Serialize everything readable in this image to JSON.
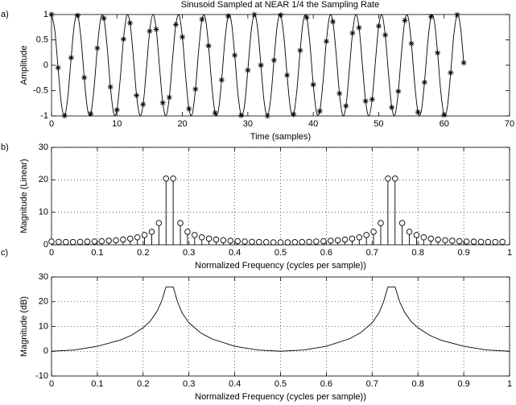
{
  "chart_data": [
    {
      "type": "line",
      "label": "a)",
      "title": "Sinusoid Sampled at NEAR 1/4 the Sampling Rate",
      "xlabel": "Time (samples)",
      "ylabel": "Amplitude",
      "xlim": [
        0,
        70
      ],
      "xticks": [
        0,
        10,
        20,
        30,
        40,
        50,
        60,
        70
      ],
      "ylim": [
        -1,
        1
      ],
      "yticks": [
        -1,
        -0.5,
        0,
        0.5,
        1
      ],
      "grid": false,
      "series": [
        {
          "color": "#000000",
          "linestyle": "solid",
          "interpolation": "smooth",
          "marker": "none",
          "x": [
            0,
            0.5,
            1,
            1.5,
            2,
            2.5,
            3,
            3.5,
            4,
            4.5,
            5,
            5.5,
            6,
            6.5,
            7,
            7.5,
            8,
            8.5,
            9,
            9.5,
            10,
            10.5,
            11,
            11.5,
            12,
            12.5,
            13,
            13.5,
            14,
            14.5,
            15,
            15.5,
            16,
            16.5,
            17,
            17.5,
            18,
            18.5,
            19,
            19.5,
            20,
            20.5,
            21,
            21.5,
            22,
            22.5,
            23,
            23.5,
            24,
            24.5,
            25,
            25.5,
            26,
            26.5,
            27,
            27.5,
            28,
            28.5,
            29,
            29.5,
            30,
            30.5,
            31,
            31.5,
            32,
            32.5,
            33,
            33.5,
            34,
            34.5,
            35,
            35.5,
            36,
            36.5,
            37,
            37.5,
            38,
            38.5,
            39,
            39.5,
            40,
            40.5,
            41,
            41.5,
            42,
            42.5,
            43,
            43.5,
            44,
            44.5,
            45,
            45.5,
            46,
            46.5,
            47,
            47.5,
            48,
            48.5,
            49,
            49.5,
            50,
            50.5,
            51,
            51.5,
            52,
            52.5,
            53,
            53.5,
            54,
            54.5,
            55,
            55.5,
            56,
            56.5,
            57,
            57.5,
            58,
            58.5,
            59,
            59.5,
            60,
            60.5,
            61,
            61.5,
            62,
            62.5,
            63
          ],
          "values": [
            1,
            0.689,
            -0.049,
            -0.757,
            -0.995,
            -0.615,
            0.147,
            0.817,
            0.981,
            0.535,
            -0.243,
            -0.87,
            -0.957,
            -0.45,
            0.337,
            0.914,
            0.924,
            0.36,
            -0.428,
            -0.95,
            -0.882,
            -0.267,
            0.514,
            0.976,
            0.831,
            0.171,
            -0.596,
            -0.992,
            -0.773,
            -0.074,
            0.672,
            1,
            0.707,
            -0.025,
            -0.741,
            -0.997,
            -0.634,
            0.122,
            0.803,
            0.985,
            0.556,
            -0.219,
            -0.858,
            -0.964,
            -0.471,
            0.314,
            0.904,
            0.933,
            0.383,
            -0.405,
            -0.941,
            -0.893,
            -0.29,
            0.493,
            0.97,
            0.845,
            0.195,
            -0.576,
            -0.989,
            -0.788,
            -0.098,
            0.653,
            0.999,
            0.724,
            0,
            -0.724,
            -0.999,
            -0.653,
            0.098,
            0.788,
            0.989,
            0.576,
            -0.195,
            -0.845,
            -0.97,
            -0.493,
            0.29,
            0.893,
            0.941,
            0.405,
            -0.383,
            -0.933,
            -0.904,
            -0.314,
            0.471,
            0.964,
            0.858,
            0.219,
            -0.556,
            -0.985,
            -0.803,
            -0.122,
            0.634,
            0.997,
            0.741,
            0.025,
            -0.707,
            -1,
            -0.672,
            0.074,
            0.773,
            0.992,
            0.596,
            -0.171,
            -0.831,
            -0.976,
            -0.514,
            0.267,
            0.882,
            0.95,
            0.428,
            -0.36,
            -0.924,
            -0.914,
            -0.337,
            0.45,
            0.957,
            0.87,
            0.243,
            -0.535,
            -0.981,
            -0.817,
            -0.147,
            0.615,
            0.995,
            0.757,
            0.049
          ]
        },
        {
          "color": "#000000",
          "linestyle": "none",
          "marker": "*",
          "x": [
            0,
            1,
            2,
            3,
            4,
            5,
            6,
            7,
            8,
            9,
            10,
            11,
            12,
            13,
            14,
            15,
            16,
            17,
            18,
            19,
            20,
            21,
            22,
            23,
            24,
            25,
            26,
            27,
            28,
            29,
            30,
            31,
            32,
            33,
            34,
            35,
            36,
            37,
            38,
            39,
            40,
            41,
            42,
            43,
            44,
            45,
            46,
            47,
            48,
            49,
            50,
            51,
            52,
            53,
            54,
            55,
            56,
            57,
            58,
            59,
            60,
            61,
            62,
            63
          ],
          "values": [
            1,
            -0.049,
            -0.995,
            0.147,
            0.981,
            -0.243,
            -0.957,
            0.337,
            0.924,
            -0.428,
            -0.882,
            0.514,
            0.831,
            -0.596,
            -0.773,
            0.672,
            0.707,
            -0.741,
            -0.634,
            0.803,
            0.556,
            -0.858,
            -0.471,
            0.904,
            0.383,
            -0.941,
            -0.29,
            0.97,
            0.195,
            -0.989,
            -0.098,
            0.999,
            0,
            -0.999,
            0.098,
            0.989,
            -0.195,
            -0.97,
            0.29,
            0.941,
            -0.383,
            -0.904,
            0.471,
            0.858,
            -0.556,
            -0.803,
            0.634,
            0.741,
            -0.707,
            -0.672,
            0.773,
            0.596,
            -0.831,
            -0.514,
            0.882,
            0.428,
            -0.924,
            -0.337,
            0.957,
            0.243,
            -0.981,
            -0.147,
            0.995,
            0.049
          ]
        }
      ]
    },
    {
      "type": "stem",
      "label": "b)",
      "xlabel": "Normalized Frequency (cycles per sample))",
      "ylabel": "Magnitude (Linear)",
      "xlim": [
        0,
        1
      ],
      "xticks": [
        0,
        0.1,
        0.2,
        0.3,
        0.4,
        0.5,
        0.6,
        0.7,
        0.8,
        0.9,
        1
      ],
      "ylim": [
        0,
        30
      ],
      "yticks": [
        0,
        10,
        20,
        30
      ],
      "grid": true,
      "series": [
        {
          "color": "#000000",
          "marker": "o",
          "x": [
            0,
            0.0156,
            0.0313,
            0.0469,
            0.0625,
            0.0781,
            0.0938,
            0.1094,
            0.125,
            0.1406,
            0.1563,
            0.1719,
            0.1875,
            0.2031,
            0.2188,
            0.2344,
            0.25,
            0.2656,
            0.2813,
            0.2969,
            0.3125,
            0.3281,
            0.3438,
            0.3594,
            0.375,
            0.3906,
            0.4063,
            0.4219,
            0.4375,
            0.4531,
            0.4688,
            0.4844,
            0.5,
            0.5156,
            0.5313,
            0.5469,
            0.5625,
            0.5781,
            0.5938,
            0.6094,
            0.625,
            0.6406,
            0.6563,
            0.6719,
            0.6875,
            0.7031,
            0.7188,
            0.7344,
            0.75,
            0.7656,
            0.7813,
            0.7969,
            0.8125,
            0.8281,
            0.8438,
            0.8594,
            0.875,
            0.8906,
            0.9063,
            0.9219,
            0.9375,
            0.9531,
            0.9688,
            0.9844
          ],
          "values": [
            1.0,
            0.9,
            0.85,
            0.85,
            0.9,
            0.95,
            1.0,
            1.1,
            1.25,
            1.4,
            1.6,
            1.9,
            2.3,
            3.0,
            4.0,
            6.7,
            20.4,
            20.4,
            6.7,
            4.0,
            3.0,
            2.3,
            1.9,
            1.6,
            1.4,
            1.25,
            1.1,
            1.0,
            0.9,
            0.85,
            0.8,
            0.75,
            0.75,
            0.75,
            0.8,
            0.85,
            0.9,
            1.0,
            1.1,
            1.25,
            1.4,
            1.6,
            1.9,
            2.3,
            3.0,
            4.0,
            6.7,
            20.4,
            20.4,
            6.7,
            4.0,
            3.0,
            2.3,
            1.9,
            1.6,
            1.4,
            1.25,
            1.1,
            1.0,
            0.95,
            0.9,
            0.85,
            0.85,
            0.9
          ]
        }
      ]
    },
    {
      "type": "line",
      "label": "c)",
      "xlabel": "Normalized Frequency (cycles per sample))",
      "ylabel": "Magnitude (dB)",
      "xlim": [
        0,
        1
      ],
      "xticks": [
        0,
        0.1,
        0.2,
        0.3,
        0.4,
        0.5,
        0.6,
        0.7,
        0.8,
        0.9,
        1
      ],
      "ylim": [
        -10,
        30
      ],
      "yticks": [
        -10,
        0,
        10,
        20,
        30
      ],
      "grid": true,
      "series": [
        {
          "color": "#000000",
          "linestyle": "solid",
          "marker": "none",
          "x": [
            0,
            0.05,
            0.1,
            0.15,
            0.175,
            0.2,
            0.215,
            0.23,
            0.24,
            0.25,
            0.2656,
            0.275,
            0.285,
            0.3,
            0.325,
            0.35,
            0.4,
            0.45,
            0.5,
            0.55,
            0.6,
            0.65,
            0.675,
            0.7,
            0.715,
            0.725,
            0.7344,
            0.75,
            0.76,
            0.77,
            0.785,
            0.8,
            0.825,
            0.85,
            0.9,
            0.95,
            1
          ],
          "values": [
            0,
            0.5,
            2,
            4.5,
            6.5,
            9.5,
            12,
            16,
            20,
            26,
            26,
            20,
            15.5,
            11.5,
            7.5,
            5,
            2,
            0.5,
            0,
            0.5,
            2,
            5,
            7.5,
            11.5,
            15.5,
            20,
            26,
            26,
            20,
            16,
            12,
            9.5,
            6.5,
            4.5,
            2,
            0.5,
            0
          ]
        }
      ]
    }
  ]
}
